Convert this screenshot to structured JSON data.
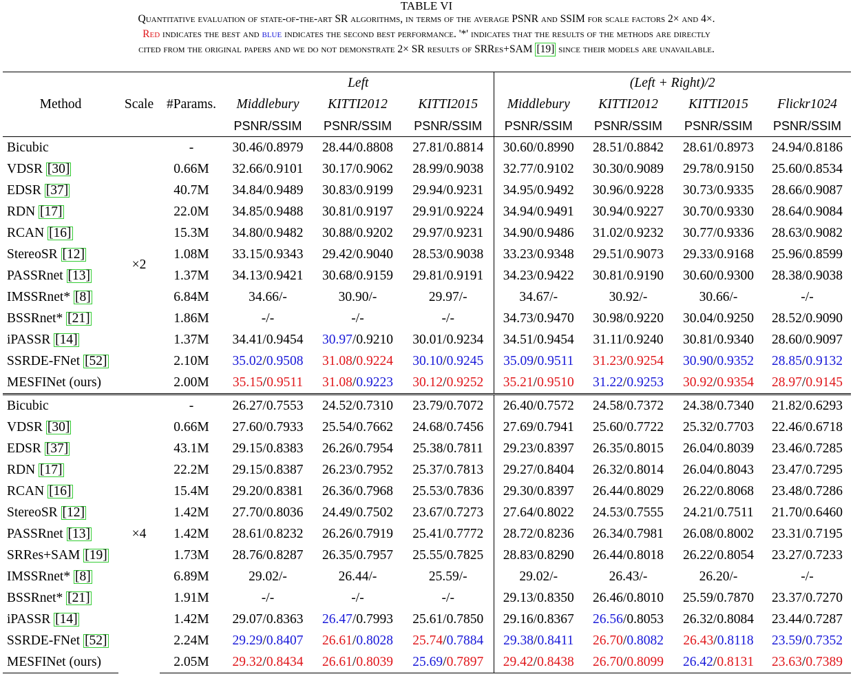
{
  "caption": {
    "label": "TABLE VI",
    "line1": "Quantitative evaluation of state-of-the-art SR algorithms, in terms of the average PSNR and SSIM for scale factors 2× and 4×.",
    "red_word": "Red",
    "line2_a": " indicates the best and ",
    "blue_word": "blue",
    "line2_b": " indicates the second best performance. '*' indicates that the results of the methods are directly",
    "line3_a": "cited from the original papers and we do not demonstrate 2× SR results of SRRes+SAM ",
    "line3_cite": "[19]",
    "line3_b": " since their models are unavailable."
  },
  "header": {
    "method": "Method",
    "scale": "Scale",
    "params": "#Params.",
    "group_left": "Left",
    "group_avg": "(Left + Right)/2",
    "datasets_left": [
      "Middlebury",
      "KITTI2012",
      "KITTI2015"
    ],
    "datasets_avg": [
      "Middlebury",
      "KITTI2012",
      "KITTI2015",
      "Flickr1024"
    ],
    "metric": "PSNR/SSIM"
  },
  "sections": [
    {
      "scale": "×2",
      "rows": [
        {
          "name": "Bicubic",
          "cite": "",
          "params": "-",
          "cells": [
            [
              "30.46",
              "0.8979"
            ],
            [
              "28.44",
              "0.8808"
            ],
            [
              "27.81",
              "0.8814"
            ],
            [
              "30.60",
              "0.8990"
            ],
            [
              "28.51",
              "0.8842"
            ],
            [
              "28.61",
              "0.8973"
            ],
            [
              "24.94",
              "0.8186"
            ]
          ]
        },
        {
          "name": "VDSR",
          "cite": "[30]",
          "params": "0.66M",
          "cells": [
            [
              "32.66",
              "0.9101"
            ],
            [
              "30.17",
              "0.9062"
            ],
            [
              "28.99",
              "0.9038"
            ],
            [
              "32.77",
              "0.9102"
            ],
            [
              "30.30",
              "0.9089"
            ],
            [
              "29.78",
              "0.9150"
            ],
            [
              "25.60",
              "0.8534"
            ]
          ]
        },
        {
          "name": "EDSR",
          "cite": "[37]",
          "params": "40.7M",
          "cells": [
            [
              "34.84",
              "0.9489"
            ],
            [
              "30.83",
              "0.9199"
            ],
            [
              "29.94",
              "0.9231"
            ],
            [
              "34.95",
              "0.9492"
            ],
            [
              "30.96",
              "0.9228"
            ],
            [
              "30.73",
              "0.9335"
            ],
            [
              "28.66",
              "0.9087"
            ]
          ]
        },
        {
          "name": "RDN",
          "cite": "[17]",
          "params": "22.0M",
          "cells": [
            [
              "34.85",
              "0.9488"
            ],
            [
              "30.81",
              "0.9197"
            ],
            [
              "29.91",
              "0.9224"
            ],
            [
              "34.94",
              "0.9491"
            ],
            [
              "30.94",
              "0.9227"
            ],
            [
              "30.70",
              "0.9330"
            ],
            [
              "28.64",
              "0.9084"
            ]
          ]
        },
        {
          "name": "RCAN",
          "cite": "[16]",
          "params": "15.3M",
          "cells": [
            [
              "34.80",
              "0.9482"
            ],
            [
              "30.88",
              "0.9202"
            ],
            [
              "29.97",
              "0.9231"
            ],
            [
              "34.90",
              "0.9486"
            ],
            [
              "31.02",
              "0.9232"
            ],
            [
              "30.77",
              "0.9336"
            ],
            [
              "28.63",
              "0.9082"
            ]
          ]
        },
        {
          "name": "StereoSR",
          "cite": "[12]",
          "params": "1.08M",
          "cells": [
            [
              "33.15",
              "0.9343"
            ],
            [
              "29.42",
              "0.9040"
            ],
            [
              "28.53",
              "0.9038"
            ],
            [
              "33.23",
              "0.9348"
            ],
            [
              "29.51",
              "0.9073"
            ],
            [
              "29.33",
              "0.9168"
            ],
            [
              "25.96",
              "0.8599"
            ]
          ]
        },
        {
          "name": "PASSRnet",
          "cite": "[13]",
          "params": "1.37M",
          "cells": [
            [
              "34.13",
              "0.9421"
            ],
            [
              "30.68",
              "0.9159"
            ],
            [
              "29.81",
              "0.9191"
            ],
            [
              "34.23",
              "0.9422"
            ],
            [
              "30.81",
              "0.9190"
            ],
            [
              "30.60",
              "0.9300"
            ],
            [
              "28.38",
              "0.9038"
            ]
          ]
        },
        {
          "name": "IMSSRnet*",
          "cite": "[8]",
          "params": "6.84M",
          "cells": [
            [
              "34.66",
              "-"
            ],
            [
              "30.90",
              "-"
            ],
            [
              "29.97",
              "-"
            ],
            [
              "34.67",
              "-"
            ],
            [
              "30.92",
              "-"
            ],
            [
              "30.66",
              "-"
            ],
            [
              "-",
              "-"
            ]
          ]
        },
        {
          "name": "BSSRnet*",
          "cite": "[21]",
          "params": "1.86M",
          "cells": [
            [
              "-",
              "-"
            ],
            [
              "-",
              "-"
            ],
            [
              "-",
              "-"
            ],
            [
              "34.73",
              "0.9470"
            ],
            [
              "30.98",
              "0.9220"
            ],
            [
              "30.04",
              "0.9250"
            ],
            [
              "28.52",
              "0.9090"
            ]
          ]
        },
        {
          "name": "iPASSR",
          "cite": "[14]",
          "params": "1.37M",
          "cells": [
            [
              "34.41",
              "0.9454"
            ],
            [
              "30.97",
              "0.9210",
              "b",
              ""
            ],
            [
              "30.01",
              "0.9234"
            ],
            [
              "34.51",
              "0.9454"
            ],
            [
              "31.11",
              "0.9240"
            ],
            [
              "30.81",
              "0.9340"
            ],
            [
              "28.60",
              "0.9097"
            ]
          ]
        },
        {
          "name": "SSRDE-FNet",
          "cite": "[52]",
          "params": "2.10M",
          "cells": [
            [
              "35.02",
              "0.9508",
              "b",
              "b"
            ],
            [
              "31.08",
              "0.9224",
              "r",
              "r"
            ],
            [
              "30.10",
              "0.9245",
              "b",
              "b"
            ],
            [
              "35.09",
              "0.9511",
              "b",
              "b"
            ],
            [
              "31.23",
              "0.9254",
              "r",
              "r"
            ],
            [
              "30.90",
              "0.9352",
              "b",
              "b"
            ],
            [
              "28.85",
              "0.9132",
              "b",
              "b"
            ]
          ]
        },
        {
          "name": "MESFINet (ours)",
          "cite": "",
          "params": "2.00M",
          "cells": [
            [
              "35.15",
              "0.9511",
              "r",
              "r"
            ],
            [
              "31.08",
              "0.9223",
              "r",
              "b"
            ],
            [
              "30.12",
              "0.9252",
              "r",
              "r"
            ],
            [
              "35.21",
              "0.9510",
              "r",
              "r"
            ],
            [
              "31.22",
              "0.9253",
              "b",
              "b"
            ],
            [
              "30.92",
              "0.9354",
              "r",
              "r"
            ],
            [
              "28.97",
              "0.9145",
              "r",
              "r"
            ]
          ]
        }
      ]
    },
    {
      "scale": "×4",
      "rows": [
        {
          "name": "Bicubic",
          "cite": "",
          "params": "-",
          "cells": [
            [
              "26.27",
              "0.7553"
            ],
            [
              "24.52",
              "0.7310"
            ],
            [
              "23.79",
              "0.7072"
            ],
            [
              "26.40",
              "0.7572"
            ],
            [
              "24.58",
              "0.7372"
            ],
            [
              "24.38",
              "0.7340"
            ],
            [
              "21.82",
              "0.6293"
            ]
          ]
        },
        {
          "name": "VDSR",
          "cite": "[30]",
          "params": "0.66M",
          "cells": [
            [
              "27.60",
              "0.7933"
            ],
            [
              "25.54",
              "0.7662"
            ],
            [
              "24.68",
              "0.7456"
            ],
            [
              "27.69",
              "0.7941"
            ],
            [
              "25.60",
              "0.7722"
            ],
            [
              "25.32",
              "0.7703"
            ],
            [
              "22.46",
              "0.6718"
            ]
          ]
        },
        {
          "name": "EDSR",
          "cite": "[37]",
          "params": "43.1M",
          "cells": [
            [
              "29.15",
              "0.8383"
            ],
            [
              "26.26",
              "0.7954"
            ],
            [
              "25.38",
              "0.7811"
            ],
            [
              "29.23",
              "0.8397"
            ],
            [
              "26.35",
              "0.8015"
            ],
            [
              "26.04",
              "0.8039"
            ],
            [
              "23.46",
              "0.7285"
            ]
          ]
        },
        {
          "name": "RDN",
          "cite": "[17]",
          "params": "22.2M",
          "cells": [
            [
              "29.15",
              "0.8387"
            ],
            [
              "26.23",
              "0.7952"
            ],
            [
              "25.37",
              "0.7813"
            ],
            [
              "29.27",
              "0.8404"
            ],
            [
              "26.32",
              "0.8014"
            ],
            [
              "26.04",
              "0.8043"
            ],
            [
              "23.47",
              "0.7295"
            ]
          ]
        },
        {
          "name": "RCAN",
          "cite": "[16]",
          "params": "15.4M",
          "cells": [
            [
              "29.20",
              "0.8381"
            ],
            [
              "26.36",
              "0.7968"
            ],
            [
              "25.53",
              "0.7836"
            ],
            [
              "29.30",
              "0.8397"
            ],
            [
              "26.44",
              "0.8029"
            ],
            [
              "26.22",
              "0.8068"
            ],
            [
              "23.48",
              "0.7286"
            ]
          ]
        },
        {
          "name": "StereoSR",
          "cite": "[12]",
          "params": "1.42M",
          "cells": [
            [
              "27.70",
              "0.8036"
            ],
            [
              "24.49",
              "0.7502"
            ],
            [
              "23.67",
              "0.7273"
            ],
            [
              "27.64",
              "0.8022"
            ],
            [
              "24.53",
              "0.7555"
            ],
            [
              "24.21",
              "0.7511"
            ],
            [
              "21.70",
              "0.6460"
            ]
          ]
        },
        {
          "name": "PASSRnet",
          "cite": "[13]",
          "params": "1.42M",
          "cells": [
            [
              "28.61",
              "0.8232"
            ],
            [
              "26.26",
              "0.7919"
            ],
            [
              "25.41",
              "0.7772"
            ],
            [
              "28.72",
              "0.8236"
            ],
            [
              "26.34",
              "0.7981"
            ],
            [
              "26.08",
              "0.8002"
            ],
            [
              "23.31",
              "0.7195"
            ]
          ]
        },
        {
          "name": "SRRes+SAM",
          "cite": "[19]",
          "params": "1.73M",
          "cells": [
            [
              "28.76",
              "0.8287"
            ],
            [
              "26.35",
              "0.7957"
            ],
            [
              "25.55",
              "0.7825"
            ],
            [
              "28.83",
              "0.8290"
            ],
            [
              "26.44",
              "0.8018"
            ],
            [
              "26.22",
              "0.8054"
            ],
            [
              "23.27",
              "0.7233"
            ]
          ]
        },
        {
          "name": "IMSSRnet*",
          "cite": "[8]",
          "params": "6.89M",
          "cells": [
            [
              "29.02",
              "-"
            ],
            [
              "26.44",
              "-"
            ],
            [
              "25.59",
              "-"
            ],
            [
              "29.02",
              "-"
            ],
            [
              "26.43",
              "-"
            ],
            [
              "26.20",
              "-"
            ],
            [
              "-",
              "-"
            ]
          ]
        },
        {
          "name": "BSSRnet*",
          "cite": "[21]",
          "params": "1.91M",
          "cells": [
            [
              "-",
              "-"
            ],
            [
              "-",
              "-"
            ],
            [
              "-",
              "-"
            ],
            [
              "29.13",
              "0.8350"
            ],
            [
              "26.46",
              "0.8010"
            ],
            [
              "25.59",
              "0.7870"
            ],
            [
              "23.37",
              "0.7270"
            ]
          ]
        },
        {
          "name": "iPASSR",
          "cite": "[14]",
          "params": "1.42M",
          "cells": [
            [
              "29.07",
              "0.8363"
            ],
            [
              "26.47",
              "0.7993",
              "b",
              ""
            ],
            [
              "25.61",
              "0.7850"
            ],
            [
              "29.16",
              "0.8367"
            ],
            [
              "26.56",
              "0.8053",
              "b",
              ""
            ],
            [
              "26.32",
              "0.8084"
            ],
            [
              "23.44",
              "0.7287"
            ]
          ]
        },
        {
          "name": "SSRDE-FNet",
          "cite": "[52]",
          "params": "2.24M",
          "cells": [
            [
              "29.29",
              "0.8407",
              "b",
              "b"
            ],
            [
              "26.61",
              "0.8028",
              "r",
              "b"
            ],
            [
              "25.74",
              "0.7884",
              "r",
              "b"
            ],
            [
              "29.38",
              "0.8411",
              "b",
              "b"
            ],
            [
              "26.70",
              "0.8082",
              "r",
              "b"
            ],
            [
              "26.43",
              "0.8118",
              "r",
              "b"
            ],
            [
              "23.59",
              "0.7352",
              "b",
              "b"
            ]
          ]
        },
        {
          "name": "MESFINet (ours)",
          "cite": "",
          "params": "2.05M",
          "cells": [
            [
              "29.32",
              "0.8434",
              "r",
              "r"
            ],
            [
              "26.61",
              "0.8039",
              "r",
              "r"
            ],
            [
              "25.69",
              "0.7897",
              "b",
              "r"
            ],
            [
              "29.42",
              "0.8438",
              "r",
              "r"
            ],
            [
              "26.70",
              "0.8099",
              "r",
              "r"
            ],
            [
              "26.42",
              "0.8131",
              "b",
              "r"
            ],
            [
              "23.63",
              "0.7389",
              "r",
              "r"
            ]
          ]
        }
      ]
    }
  ]
}
